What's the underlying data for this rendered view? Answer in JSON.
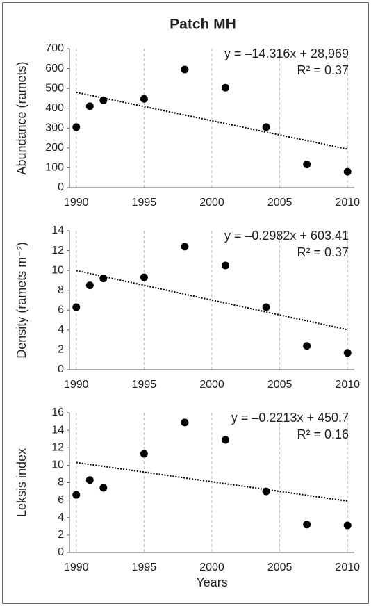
{
  "chart_data": [
    {
      "type": "scatter",
      "title": "Patch MH",
      "ylabel": "Abundance (ramets)",
      "x": [
        1990,
        1991,
        1992,
        1995,
        1998,
        2001,
        2004,
        2007,
        2010
      ],
      "values": [
        305,
        410,
        440,
        447,
        595,
        503,
        305,
        117,
        80
      ],
      "color": "#000000",
      "trend": {
        "x": [
          1990,
          2010
        ],
        "values": [
          480,
          194
        ]
      },
      "annotations": [
        "y = –14.316x + 28,969",
        "R² = 0.37"
      ],
      "xlim": [
        1989.5,
        2010.5
      ],
      "xticks": [
        1990,
        1995,
        2000,
        2005,
        2010
      ],
      "ylim": [
        0,
        700
      ],
      "yticks": [
        0,
        100,
        200,
        300,
        400,
        500,
        600,
        700
      ],
      "grid": true
    },
    {
      "type": "scatter",
      "ylabel": "Density (ramets m⁻²)",
      "x": [
        1990,
        1991,
        1992,
        1995,
        1998,
        2001,
        2004,
        2007,
        2010
      ],
      "values": [
        6.3,
        8.5,
        9.2,
        9.3,
        12.4,
        10.5,
        6.3,
        2.4,
        1.7
      ],
      "color": "#000000",
      "trend": {
        "x": [
          1990,
          2010
        ],
        "values": [
          9.99,
          4.03
        ]
      },
      "annotations": [
        "y = –0.2982x + 603.41",
        "R² = 0.37"
      ],
      "xlim": [
        1989.5,
        2010.5
      ],
      "xticks": [
        1990,
        1995,
        2000,
        2005,
        2010
      ],
      "ylim": [
        0,
        14
      ],
      "yticks": [
        0,
        2,
        4,
        6,
        8,
        10,
        12,
        14
      ],
      "grid": true
    },
    {
      "type": "scatter",
      "ylabel": "Leksis index",
      "xlabel": "Years",
      "x": [
        1990,
        1991,
        1992,
        1995,
        1998,
        2001,
        2004,
        2007,
        2010
      ],
      "values": [
        6.6,
        8.3,
        7.4,
        11.3,
        14.9,
        12.9,
        7.0,
        3.2,
        3.1
      ],
      "color": "#000000",
      "trend": {
        "x": [
          1990,
          2010
        ],
        "values": [
          10.31,
          5.89
        ]
      },
      "annotations": [
        "y = –0.2213x + 450.7",
        "R² = 0.16"
      ],
      "xlim": [
        1989.5,
        2010.5
      ],
      "xticks": [
        1990,
        1995,
        2000,
        2005,
        2010
      ],
      "ylim": [
        0,
        16
      ],
      "yticks": [
        0,
        2,
        4,
        6,
        8,
        10,
        12,
        14,
        16
      ],
      "grid": true
    }
  ]
}
